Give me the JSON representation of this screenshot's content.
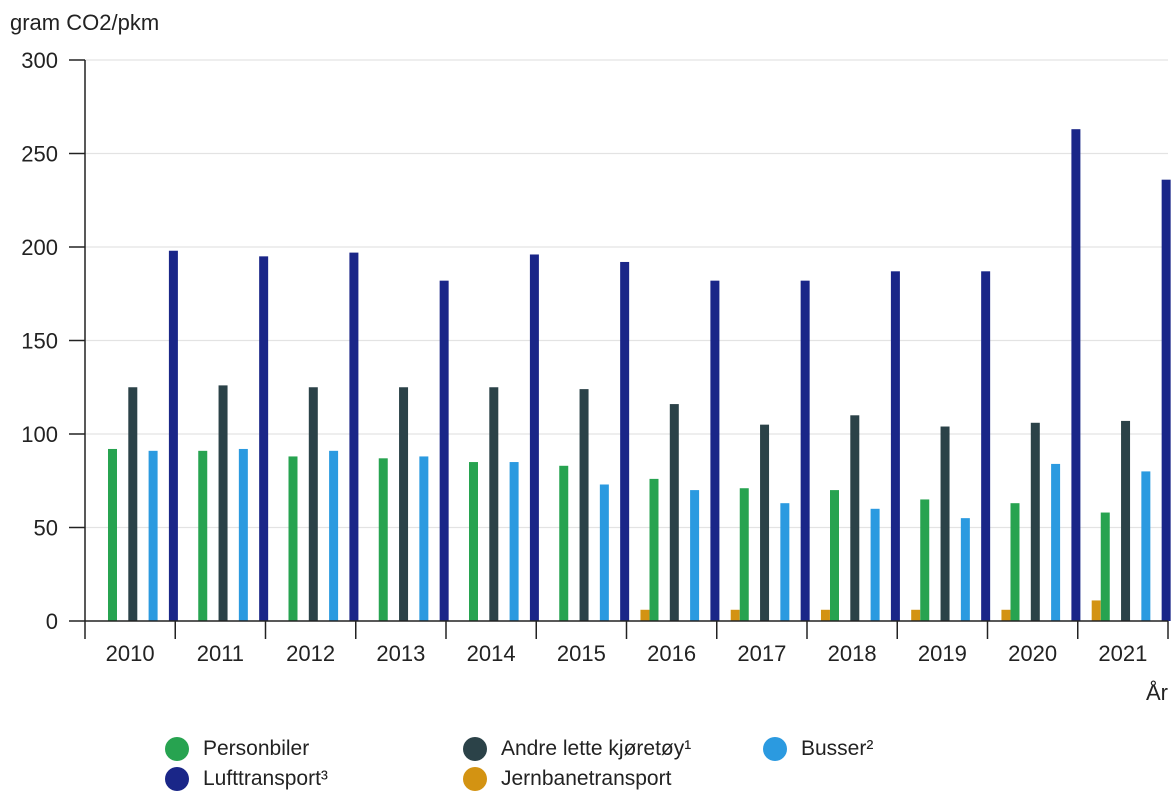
{
  "chart_data": {
    "type": "bar",
    "ylabel": "gram CO2/pkm",
    "xlabel": "År",
    "ylim": [
      0,
      300
    ],
    "yticks": [
      0,
      50,
      100,
      150,
      200,
      250,
      300
    ],
    "grid": true,
    "legend_placement": "bottom",
    "categories": [
      "2010",
      "2011",
      "2012",
      "2013",
      "2014",
      "2015",
      "2016",
      "2017",
      "2018",
      "2019",
      "2020",
      "2021"
    ],
    "series": [
      {
        "name": "Personbiler",
        "color": "#27a350",
        "values": [
          92,
          91,
          88,
          87,
          85,
          83,
          76,
          71,
          70,
          65,
          63,
          58
        ]
      },
      {
        "name": "Andre lette kjøretøy¹",
        "color": "#2b4248",
        "values": [
          125,
          126,
          125,
          125,
          125,
          124,
          116,
          105,
          110,
          104,
          106,
          107
        ]
      },
      {
        "name": "Busser²",
        "color": "#2b9ae0",
        "values": [
          91,
          92,
          91,
          88,
          85,
          73,
          70,
          63,
          60,
          55,
          84,
          80
        ]
      },
      {
        "name": "Lufttransport³",
        "color": "#1a2688",
        "values": [
          198,
          195,
          197,
          182,
          196,
          192,
          182,
          182,
          187,
          187,
          263,
          236
        ]
      },
      {
        "name": "Jernbanetransport",
        "color": "#d39312",
        "values": [
          null,
          null,
          null,
          null,
          null,
          6,
          6,
          6,
          6,
          6,
          11,
          11
        ]
      }
    ]
  }
}
